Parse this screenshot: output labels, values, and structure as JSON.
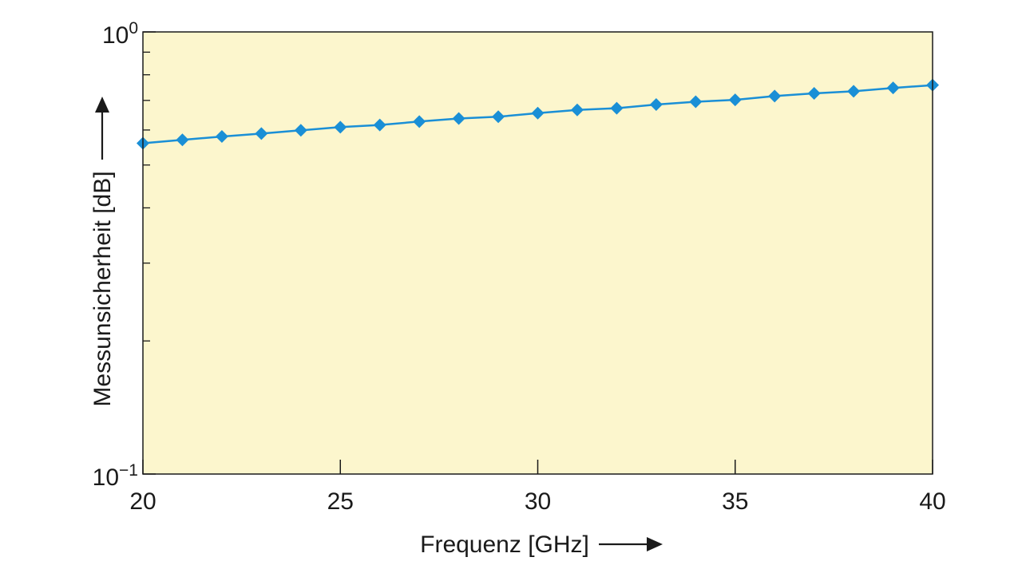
{
  "chart_data": {
    "type": "line",
    "xlabel": "Frequenz [GHz]",
    "ylabel": "Messunsicherheit [dB]",
    "xlim": [
      20,
      40
    ],
    "ylim": [
      0.1,
      1.0
    ],
    "yscale": "log",
    "x_ticks": [
      "20",
      "25",
      "30",
      "35",
      "40"
    ],
    "y_ticks": [
      {
        "base": "10",
        "exp": "0",
        "value": 1.0
      },
      {
        "base": "10",
        "exp": "−1",
        "value": 0.1
      }
    ],
    "grid": false,
    "plot_background": "#fcf6cd",
    "series": [
      {
        "color": "#1a8fd6",
        "marker": "diamond",
        "x": [
          20,
          21,
          22,
          23,
          24,
          25,
          26,
          27,
          28,
          29,
          30,
          31,
          32,
          33,
          34,
          35,
          36,
          37,
          38,
          39,
          40
        ],
        "values": [
          0.56,
          0.57,
          0.58,
          0.589,
          0.599,
          0.609,
          0.616,
          0.627,
          0.637,
          0.643,
          0.655,
          0.666,
          0.672,
          0.685,
          0.695,
          0.702,
          0.716,
          0.726,
          0.734,
          0.747,
          0.758
        ]
      }
    ]
  }
}
